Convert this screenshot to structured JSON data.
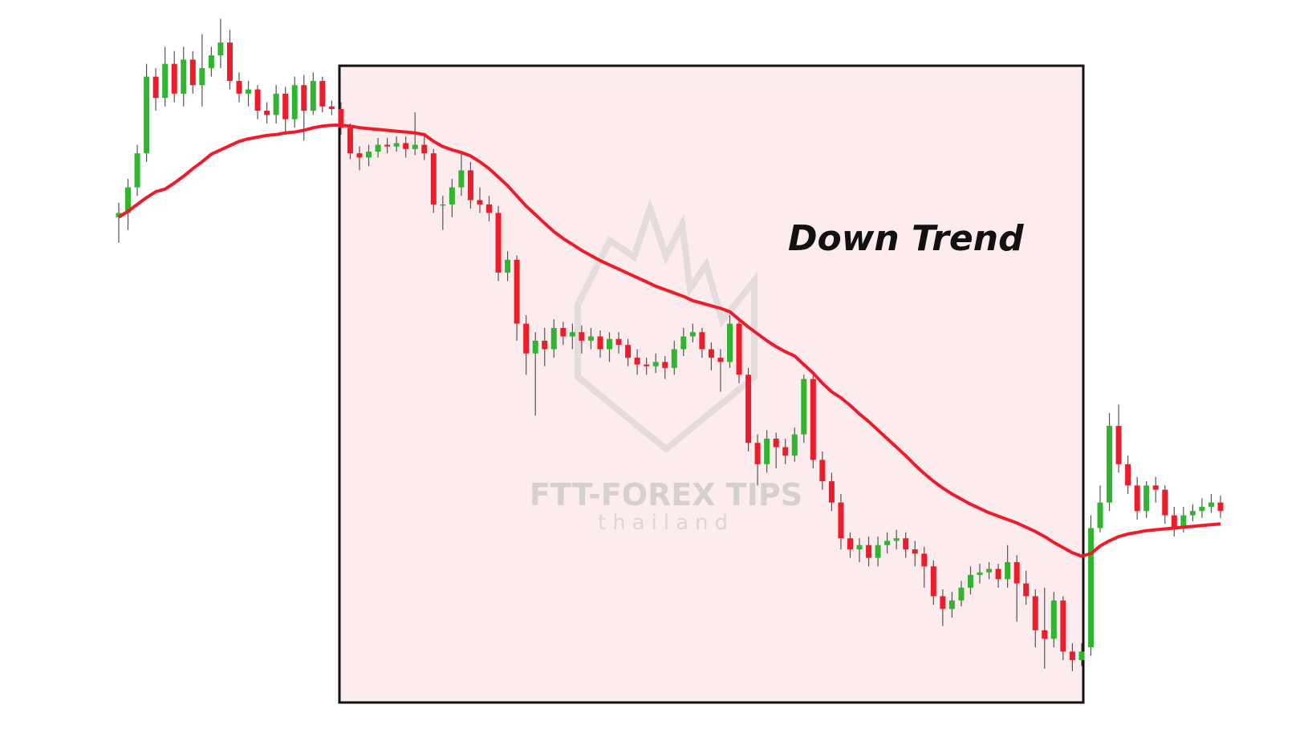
{
  "chart_data": {
    "type": "candlestick",
    "annotation": "Down Trend",
    "watermark": "FTT-FOREX TIPS",
    "watermark_subtitle": "thailand",
    "up_color": "#2fb52f",
    "down_color": "#ee1c2a",
    "ylim": [
      0,
      870
    ],
    "open": [
      615,
      620,
      650,
      690,
      780,
      755,
      795,
      760,
      800,
      770,
      790,
      805,
      820,
      775,
      760,
      765,
      740,
      735,
      760,
      730,
      770,
      740,
      775,
      745,
      742,
      720,
      690,
      685,
      692,
      700,
      698,
      702,
      695,
      700,
      690,
      630,
      630,
      650,
      670,
      635,
      630,
      620,
      550,
      565,
      490,
      455,
      470,
      460,
      485,
      475,
      480,
      470,
      475,
      460,
      472,
      465,
      450,
      442,
      440,
      445,
      438,
      460,
      475,
      480,
      460,
      450,
      445,
      490,
      430,
      350,
      325,
      355,
      345,
      335,
      360,
      425,
      330,
      305,
      280,
      238,
      225,
      230,
      215,
      230,
      235,
      238,
      225,
      220,
      205,
      170,
      155,
      165,
      180,
      195,
      198,
      202,
      190,
      210,
      185,
      170,
      130,
      120,
      165,
      105,
      95,
      110,
      250,
      280,
      370,
      325,
      300,
      270,
      300,
      295,
      265,
      250,
      265,
      270,
      275,
      280
    ],
    "high": [
      632,
      660,
      700,
      795,
      790,
      815,
      810,
      815,
      810,
      830,
      815,
      848,
      835,
      785,
      775,
      770,
      750,
      770,
      768,
      780,
      782,
      785,
      780,
      752,
      750,
      725,
      698,
      700,
      708,
      708,
      710,
      710,
      738,
      712,
      695,
      640,
      660,
      690,
      680,
      650,
      640,
      628,
      575,
      570,
      500,
      480,
      485,
      495,
      492,
      490,
      488,
      485,
      482,
      480,
      480,
      472,
      460,
      450,
      455,
      452,
      470,
      485,
      490,
      485,
      468,
      460,
      500,
      495,
      438,
      360,
      365,
      362,
      355,
      368,
      430,
      430,
      340,
      315,
      290,
      245,
      238,
      240,
      240,
      245,
      248,
      245,
      235,
      228,
      212,
      178,
      175,
      188,
      205,
      208,
      210,
      208,
      230,
      218,
      200,
      178,
      180,
      175,
      170,
      115,
      115,
      265,
      300,
      385,
      395,
      335,
      310,
      305,
      310,
      300,
      275,
      275,
      278,
      285,
      290,
      288
    ],
    "low": [
      585,
      600,
      640,
      680,
      740,
      745,
      750,
      745,
      760,
      745,
      780,
      790,
      765,
      750,
      745,
      730,
      725,
      725,
      712,
      720,
      705,
      735,
      738,
      735,
      712,
      683,
      670,
      675,
      685,
      690,
      692,
      685,
      688,
      682,
      620,
      600,
      615,
      640,
      625,
      620,
      610,
      540,
      540,
      470,
      430,
      382,
      440,
      450,
      465,
      460,
      455,
      460,
      450,
      445,
      455,
      440,
      430,
      430,
      432,
      425,
      430,
      452,
      468,
      450,
      435,
      410,
      438,
      420,
      340,
      300,
      315,
      320,
      325,
      328,
      350,
      320,
      295,
      270,
      225,
      215,
      210,
      205,
      205,
      220,
      225,
      215,
      205,
      180,
      160,
      135,
      145,
      158,
      172,
      185,
      190,
      180,
      180,
      140,
      160,
      110,
      85,
      110,
      95,
      82,
      88,
      100,
      245,
      270,
      315,
      290,
      260,
      262,
      280,
      255,
      240,
      245,
      258,
      262,
      268,
      262
    ],
    "close": [
      620,
      650,
      690,
      780,
      755,
      795,
      760,
      800,
      770,
      790,
      805,
      820,
      775,
      760,
      765,
      740,
      735,
      760,
      730,
      770,
      740,
      775,
      745,
      742,
      720,
      690,
      685,
      692,
      700,
      698,
      702,
      695,
      700,
      690,
      630,
      630,
      650,
      670,
      635,
      630,
      620,
      550,
      565,
      490,
      455,
      470,
      460,
      485,
      475,
      480,
      470,
      475,
      460,
      472,
      465,
      450,
      442,
      440,
      445,
      438,
      460,
      475,
      480,
      460,
      450,
      445,
      490,
      430,
      350,
      325,
      355,
      345,
      335,
      360,
      425,
      330,
      305,
      280,
      238,
      225,
      230,
      215,
      230,
      235,
      238,
      225,
      220,
      205,
      170,
      155,
      165,
      180,
      195,
      198,
      202,
      190,
      210,
      185,
      170,
      130,
      120,
      165,
      105,
      95,
      105,
      250,
      280,
      370,
      325,
      300,
      270,
      300,
      295,
      265,
      250,
      265,
      270,
      275,
      280,
      270
    ],
    "moving_average": {
      "color": "#ee1c2a",
      "values": [
        615,
        622,
        630,
        638,
        645,
        648,
        655,
        663,
        672,
        680,
        689,
        694,
        699,
        704,
        707,
        709,
        711,
        712,
        714,
        715,
        717,
        720,
        722,
        723,
        723,
        722,
        720,
        719,
        718,
        717,
        716,
        715,
        714,
        712,
        704,
        698,
        694,
        691,
        687,
        680,
        672,
        662,
        652,
        640,
        628,
        618,
        608,
        598,
        590,
        583,
        576,
        570,
        564,
        559,
        554,
        549,
        544,
        539,
        534,
        530,
        526,
        522,
        517,
        514,
        511,
        508,
        504,
        495,
        486,
        478,
        470,
        463,
        457,
        452,
        442,
        432,
        420,
        410,
        403,
        394,
        384,
        375,
        365,
        355,
        345,
        335,
        324,
        314,
        305,
        297,
        290,
        284,
        278,
        273,
        268,
        264,
        260,
        256,
        251,
        246,
        240,
        233,
        227,
        221,
        217,
        220,
        229,
        235,
        240,
        243,
        245,
        247,
        248,
        249,
        250,
        251,
        252,
        253,
        254,
        255
      ]
    }
  }
}
